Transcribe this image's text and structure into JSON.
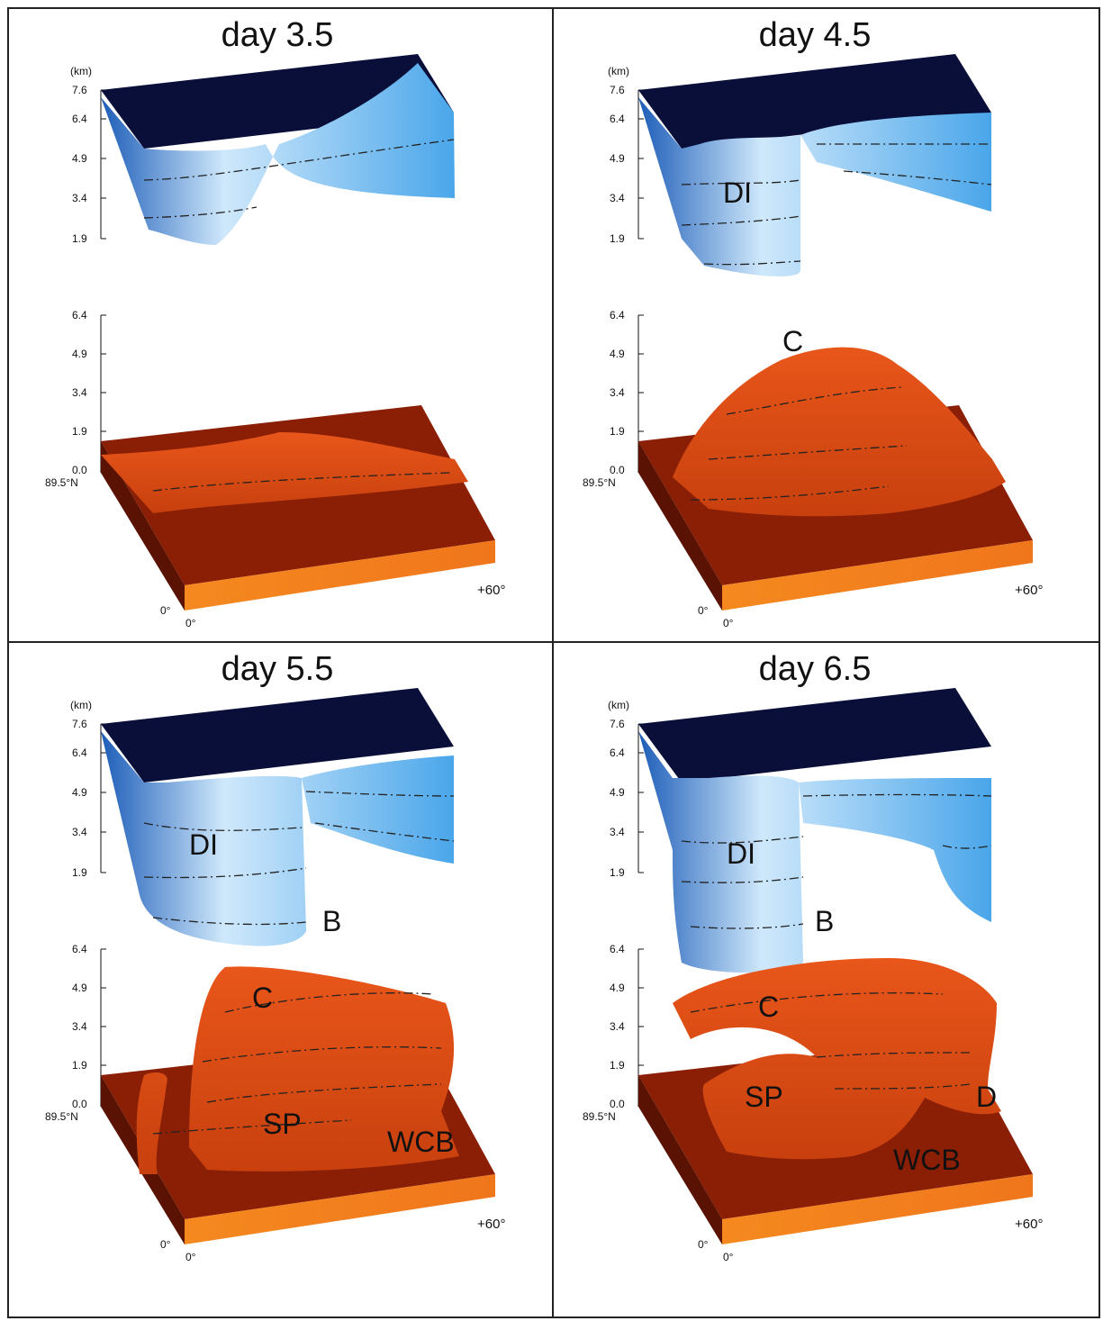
{
  "panels": [
    {
      "title": "day 3.5",
      "annotations": []
    },
    {
      "title": "day 4.5",
      "annotations": [
        "DI",
        "C"
      ]
    },
    {
      "title": "day 5.5",
      "annotations": [
        "DI",
        "B",
        "C",
        "SP",
        "WCB"
      ]
    },
    {
      "title": "day 6.5",
      "annotations": [
        "DI",
        "B",
        "C",
        "D",
        "SP",
        "WCB"
      ]
    }
  ],
  "upper_axis": {
    "unit": "(km)",
    "ticks": [
      "7.6",
      "6.4",
      "4.9",
      "3.4",
      "1.9"
    ]
  },
  "lower_axis": {
    "ticks": [
      "6.4",
      "4.9",
      "3.4",
      "1.9",
      "0.0"
    ]
  },
  "labels": {
    "lat": "89.5°N",
    "lon_left": "0°",
    "lon_bottom": "0°",
    "lon_right": "+60°"
  },
  "colors": {
    "top_dark": "#0a0f3a",
    "blue_surface": "#4aa6ea",
    "blue_light": "#cfe8fb",
    "orange_surface": "#e8561a",
    "orange_dark": "#7a1a05",
    "base_front": "#f07a20"
  }
}
